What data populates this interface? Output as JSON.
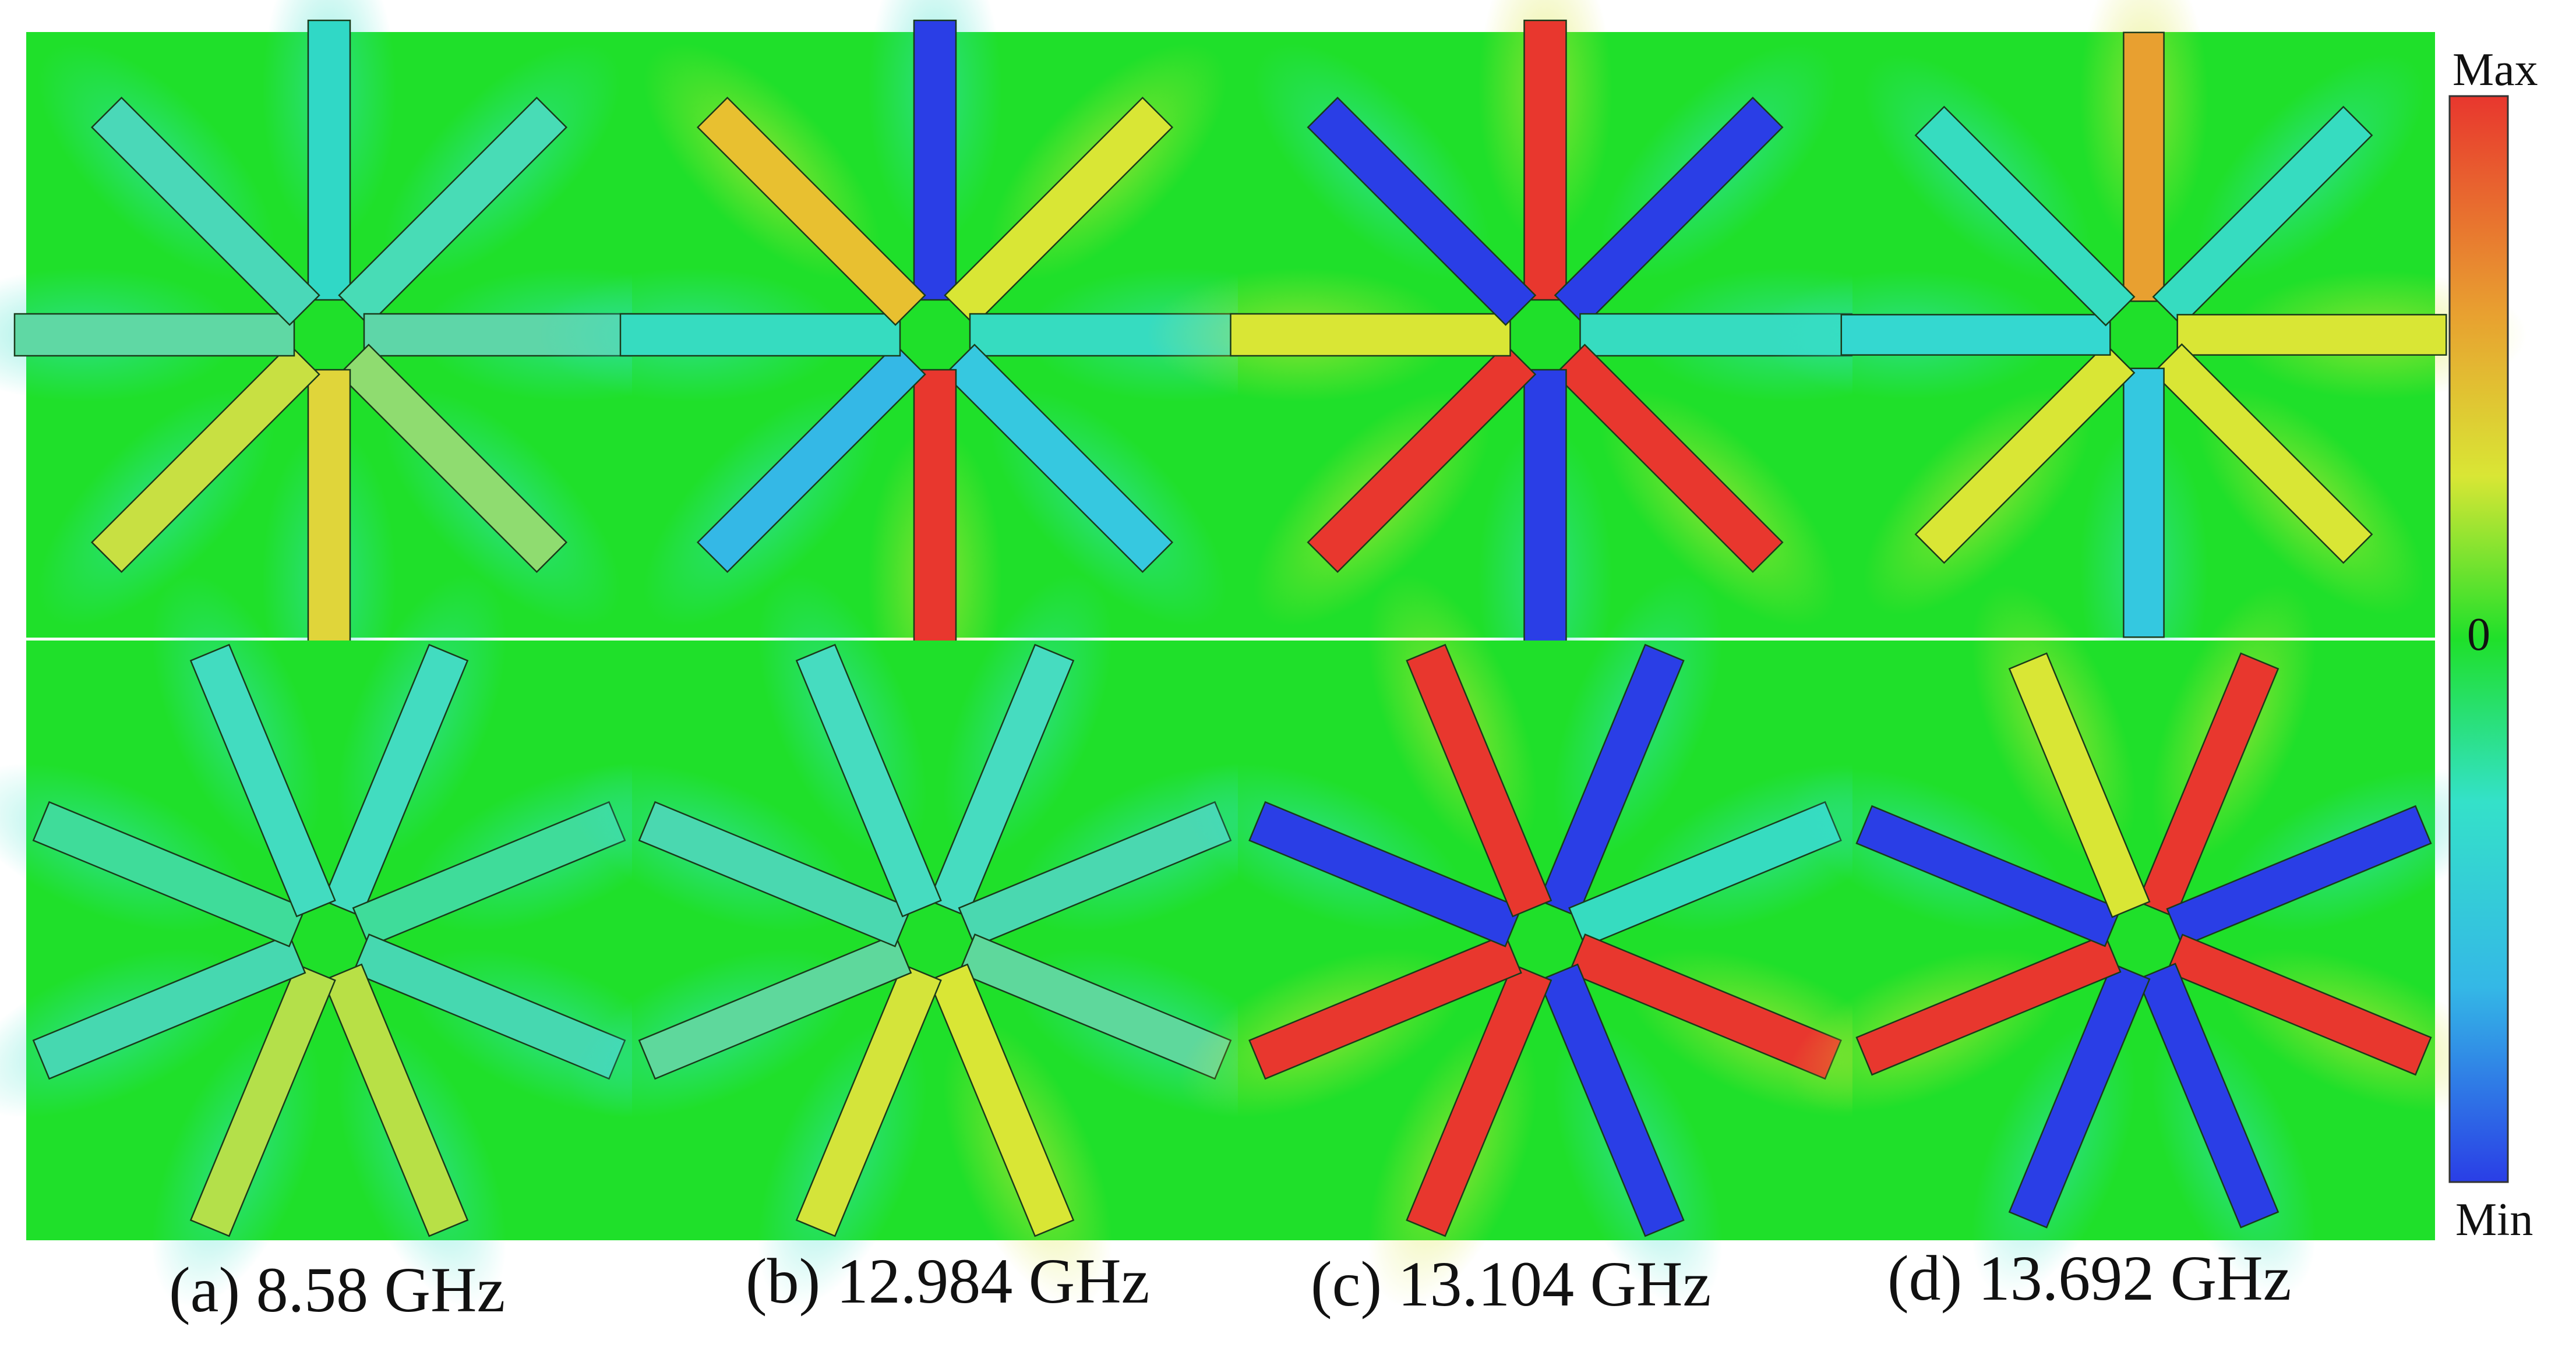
{
  "colors": {
    "field_bg": "#1fe02a",
    "max": "#e8372e",
    "mid_warm": "#d9e635",
    "zero": "#1fe02a",
    "mid_cool": "#34e1c9",
    "min": "#2a3ee6"
  },
  "colorbar": {
    "max_label": "Max",
    "zero_label": "0",
    "min_label": "Min"
  },
  "panels": [
    {
      "caption": "(a) 8.58 GHz",
      "top_star": {
        "rotation_deg": 0,
        "arms": [
          "#30d8c6",
          "#48dcb6",
          "#5ed6a8",
          "#8fdc70",
          "#e0d53a",
          "#c8e042",
          "#5fd8a4",
          "#4ad8b8"
        ]
      },
      "bottom_star": {
        "rotation_deg": 22.5,
        "arms": [
          "#42dcc0",
          "#3fdc9a",
          "#46d8b0",
          "#b8e046",
          "#b4e04a",
          "#46d8b0",
          "#3fdc9a",
          "#42dcc0"
        ]
      }
    },
    {
      "caption": "(b) 12.984 GHz",
      "top_star": {
        "rotation_deg": 0,
        "arms": [
          "#2a3ee6",
          "#d9e635",
          "#36dcc0",
          "#36c8e0",
          "#e8372e",
          "#34b8e6",
          "#36dcc0",
          "#e8c030"
        ]
      },
      "bottom_star": {
        "rotation_deg": 22.5,
        "arms": [
          "#46dcc0",
          "#4ad8b0",
          "#5ed89c",
          "#d9e635",
          "#d4e43a",
          "#5ed89c",
          "#4ad8b0",
          "#46dcc0"
        ]
      }
    },
    {
      "caption": "(c) 13.104 GHz",
      "top_star": {
        "rotation_deg": 0,
        "arms": [
          "#e8372e",
          "#2a3ee6",
          "#36dcc0",
          "#e8372e",
          "#2a3ee6",
          "#e8372e",
          "#d9e635",
          "#2a3ee6"
        ]
      },
      "bottom_star": {
        "rotation_deg": 22.5,
        "arms": [
          "#2a3ee6",
          "#36dcc0",
          "#e8372e",
          "#2a3ee6",
          "#e8372e",
          "#e8372e",
          "#2a3ee6",
          "#e8372e"
        ]
      }
    },
    {
      "caption": "(d) 13.692 GHz",
      "top_star": {
        "rotation_deg": 0,
        "arms": [
          "#e8a030",
          "#36dcc0",
          "#d9e635",
          "#d9e635",
          "#34c8e0",
          "#d9e635",
          "#34d8d0",
          "#36dcc0"
        ]
      },
      "bottom_star": {
        "rotation_deg": 22.5,
        "arms": [
          "#e8372e",
          "#2a3ee6",
          "#e8372e",
          "#2a3ee6",
          "#2a3ee6",
          "#e8372e",
          "#2a3ee6",
          "#d9e635"
        ]
      }
    }
  ]
}
